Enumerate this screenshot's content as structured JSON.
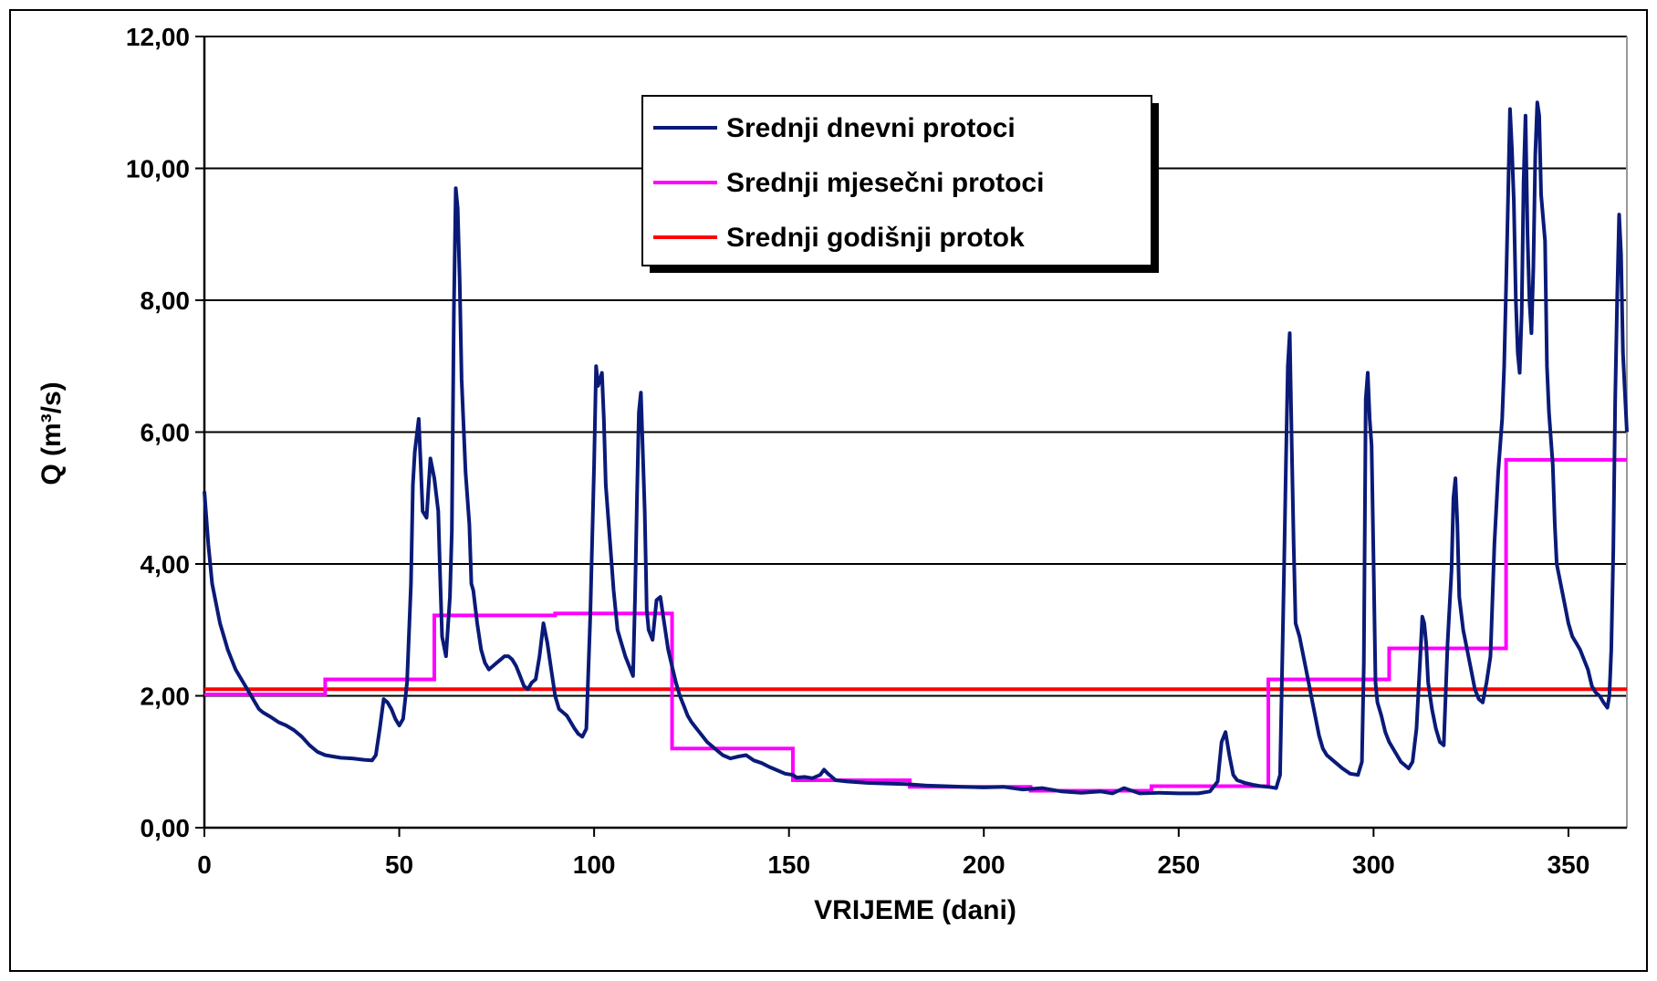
{
  "chart_data": {
    "type": "line",
    "title": "",
    "xlabel": "VRIJEME (dani)",
    "ylabel": "Q (m³/s)",
    "xlim": [
      0,
      365
    ],
    "ylim": [
      0,
      12
    ],
    "x_ticks": [
      0,
      50,
      100,
      150,
      200,
      250,
      300,
      350
    ],
    "x_tick_labels": [
      "0",
      "50",
      "100",
      "150",
      "200",
      "250",
      "300",
      "350"
    ],
    "y_ticks": [
      0,
      2,
      4,
      6,
      8,
      10,
      12
    ],
    "y_tick_labels": [
      "0,00",
      "2,00",
      "4,00",
      "6,00",
      "8,00",
      "10,00",
      "12,00"
    ],
    "grid": "horizontal",
    "legend_position": "top-center",
    "series": [
      {
        "name": "Srednji dnevni protoci",
        "color": "#0a1a78",
        "style": "line",
        "points": [
          [
            0,
            5.1
          ],
          [
            1,
            4.3
          ],
          [
            2,
            3.7
          ],
          [
            3,
            3.4
          ],
          [
            4,
            3.1
          ],
          [
            5,
            2.9
          ],
          [
            6,
            2.7
          ],
          [
            7,
            2.55
          ],
          [
            8,
            2.4
          ],
          [
            9,
            2.3
          ],
          [
            10,
            2.2
          ],
          [
            11,
            2.1
          ],
          [
            12,
            2.0
          ],
          [
            13,
            1.9
          ],
          [
            14,
            1.8
          ],
          [
            15,
            1.75
          ],
          [
            17,
            1.68
          ],
          [
            19,
            1.6
          ],
          [
            21,
            1.55
          ],
          [
            23,
            1.48
          ],
          [
            25,
            1.38
          ],
          [
            27,
            1.25
          ],
          [
            29,
            1.15
          ],
          [
            31,
            1.1
          ],
          [
            33,
            1.08
          ],
          [
            35,
            1.06
          ],
          [
            38,
            1.05
          ],
          [
            41,
            1.03
          ],
          [
            43,
            1.02
          ],
          [
            44,
            1.1
          ],
          [
            45,
            1.5
          ],
          [
            46,
            1.95
          ],
          [
            47,
            1.9
          ],
          [
            48,
            1.8
          ],
          [
            49,
            1.65
          ],
          [
            50,
            1.55
          ],
          [
            51,
            1.65
          ],
          [
            52,
            2.2
          ],
          [
            53,
            3.7
          ],
          [
            53.5,
            5.2
          ],
          [
            54,
            5.7
          ],
          [
            55,
            6.2
          ],
          [
            55.5,
            5.5
          ],
          [
            56,
            4.8
          ],
          [
            57,
            4.7
          ],
          [
            58,
            5.6
          ],
          [
            59,
            5.3
          ],
          [
            60,
            4.8
          ],
          [
            60.5,
            3.8
          ],
          [
            61,
            2.9
          ],
          [
            62,
            2.6
          ],
          [
            63,
            3.5
          ],
          [
            63.5,
            4.5
          ],
          [
            64,
            7.8
          ],
          [
            64.5,
            9.7
          ],
          [
            65,
            9.4
          ],
          [
            65.5,
            8.3
          ],
          [
            66,
            6.8
          ],
          [
            67,
            5.4
          ],
          [
            68,
            4.6
          ],
          [
            68.5,
            3.7
          ],
          [
            69,
            3.6
          ],
          [
            70,
            3.1
          ],
          [
            71,
            2.7
          ],
          [
            72,
            2.5
          ],
          [
            73,
            2.4
          ],
          [
            74,
            2.45
          ],
          [
            75,
            2.5
          ],
          [
            76,
            2.55
          ],
          [
            77,
            2.6
          ],
          [
            78,
            2.6
          ],
          [
            79,
            2.55
          ],
          [
            80,
            2.45
          ],
          [
            81,
            2.3
          ],
          [
            82,
            2.15
          ],
          [
            83,
            2.1
          ],
          [
            84,
            2.2
          ],
          [
            85,
            2.25
          ],
          [
            86,
            2.6
          ],
          [
            87,
            3.1
          ],
          [
            88,
            2.8
          ],
          [
            89,
            2.4
          ],
          [
            90,
            2.0
          ],
          [
            91,
            1.8
          ],
          [
            92,
            1.75
          ],
          [
            93,
            1.7
          ],
          [
            94,
            1.6
          ],
          [
            95,
            1.5
          ],
          [
            96,
            1.42
          ],
          [
            97,
            1.38
          ],
          [
            98,
            1.5
          ],
          [
            99,
            3.2
          ],
          [
            100,
            5.5
          ],
          [
            100.5,
            7.0
          ],
          [
            101,
            6.7
          ],
          [
            102,
            6.9
          ],
          [
            102.5,
            6.2
          ],
          [
            103,
            5.2
          ],
          [
            104,
            4.4
          ],
          [
            105,
            3.6
          ],
          [
            106,
            3.0
          ],
          [
            107,
            2.8
          ],
          [
            108,
            2.6
          ],
          [
            109,
            2.45
          ],
          [
            110,
            2.3
          ],
          [
            110.5,
            3.5
          ],
          [
            111,
            5.0
          ],
          [
            111.5,
            6.3
          ],
          [
            112,
            6.6
          ],
          [
            112.5,
            5.7
          ],
          [
            113,
            4.8
          ],
          [
            113.5,
            3.3
          ],
          [
            114,
            3.0
          ],
          [
            115,
            2.85
          ],
          [
            116,
            3.45
          ],
          [
            117,
            3.5
          ],
          [
            118,
            3.1
          ],
          [
            119,
            2.7
          ],
          [
            120,
            2.45
          ],
          [
            121,
            2.2
          ],
          [
            122,
            2.0
          ],
          [
            123,
            1.85
          ],
          [
            124,
            1.7
          ],
          [
            125,
            1.6
          ],
          [
            127,
            1.45
          ],
          [
            129,
            1.3
          ],
          [
            131,
            1.2
          ],
          [
            133,
            1.1
          ],
          [
            135,
            1.05
          ],
          [
            137,
            1.08
          ],
          [
            139,
            1.1
          ],
          [
            141,
            1.02
          ],
          [
            143,
            0.98
          ],
          [
            145,
            0.92
          ],
          [
            147,
            0.87
          ],
          [
            149,
            0.82
          ],
          [
            151,
            0.8
          ],
          [
            152,
            0.76
          ],
          [
            154,
            0.77
          ],
          [
            156,
            0.75
          ],
          [
            158,
            0.8
          ],
          [
            159,
            0.88
          ],
          [
            160,
            0.82
          ],
          [
            162,
            0.72
          ],
          [
            165,
            0.7
          ],
          [
            170,
            0.68
          ],
          [
            175,
            0.67
          ],
          [
            180,
            0.66
          ],
          [
            185,
            0.64
          ],
          [
            190,
            0.63
          ],
          [
            195,
            0.62
          ],
          [
            200,
            0.61
          ],
          [
            205,
            0.62
          ],
          [
            210,
            0.58
          ],
          [
            215,
            0.6
          ],
          [
            220,
            0.55
          ],
          [
            225,
            0.53
          ],
          [
            230,
            0.55
          ],
          [
            233,
            0.52
          ],
          [
            236,
            0.6
          ],
          [
            240,
            0.52
          ],
          [
            245,
            0.53
          ],
          [
            250,
            0.52
          ],
          [
            255,
            0.52
          ],
          [
            258,
            0.55
          ],
          [
            260,
            0.7
          ],
          [
            261,
            1.3
          ],
          [
            262,
            1.45
          ],
          [
            263,
            1.1
          ],
          [
            264,
            0.8
          ],
          [
            265,
            0.72
          ],
          [
            267,
            0.68
          ],
          [
            269,
            0.65
          ],
          [
            271,
            0.63
          ],
          [
            273,
            0.62
          ],
          [
            275,
            0.6
          ],
          [
            276,
            0.8
          ],
          [
            277,
            3.8
          ],
          [
            277.5,
            5.5
          ],
          [
            278,
            7.0
          ],
          [
            278.5,
            7.5
          ],
          [
            279,
            5.8
          ],
          [
            279.5,
            4.3
          ],
          [
            280,
            3.1
          ],
          [
            281,
            2.9
          ],
          [
            282,
            2.6
          ],
          [
            283,
            2.3
          ],
          [
            284,
            2.0
          ],
          [
            285,
            1.7
          ],
          [
            286,
            1.4
          ],
          [
            287,
            1.2
          ],
          [
            288,
            1.1
          ],
          [
            290,
            1.0
          ],
          [
            292,
            0.9
          ],
          [
            294,
            0.82
          ],
          [
            296,
            0.8
          ],
          [
            297,
            1.0
          ],
          [
            297.5,
            2.5
          ],
          [
            298,
            6.5
          ],
          [
            298.5,
            6.9
          ],
          [
            299,
            6.2
          ],
          [
            299.5,
            5.8
          ],
          [
            300,
            4.0
          ],
          [
            300.5,
            2.2
          ],
          [
            301,
            1.9
          ],
          [
            302,
            1.7
          ],
          [
            303,
            1.45
          ],
          [
            304,
            1.3
          ],
          [
            305,
            1.2
          ],
          [
            306,
            1.1
          ],
          [
            307,
            1.0
          ],
          [
            308,
            0.95
          ],
          [
            309,
            0.9
          ],
          [
            310,
            1.0
          ],
          [
            311,
            1.5
          ],
          [
            312,
            2.6
          ],
          [
            312.5,
            3.2
          ],
          [
            313,
            3.1
          ],
          [
            313.5,
            2.8
          ],
          [
            314,
            2.2
          ],
          [
            315,
            1.8
          ],
          [
            316,
            1.5
          ],
          [
            317,
            1.3
          ],
          [
            318,
            1.25
          ],
          [
            319,
            2.8
          ],
          [
            320,
            3.9
          ],
          [
            320.5,
            5.0
          ],
          [
            321,
            5.3
          ],
          [
            321.5,
            4.6
          ],
          [
            322,
            3.5
          ],
          [
            323,
            3.0
          ],
          [
            324,
            2.7
          ],
          [
            325,
            2.4
          ],
          [
            326,
            2.1
          ],
          [
            327,
            1.95
          ],
          [
            328,
            1.9
          ],
          [
            329,
            2.2
          ],
          [
            330,
            2.6
          ],
          [
            331,
            4.3
          ],
          [
            332,
            5.4
          ],
          [
            333,
            6.2
          ],
          [
            333.5,
            7.0
          ],
          [
            334,
            8.2
          ],
          [
            334.5,
            9.5
          ],
          [
            335,
            10.9
          ],
          [
            335.5,
            10.3
          ],
          [
            336,
            9.5
          ],
          [
            336.5,
            8.0
          ],
          [
            337,
            7.2
          ],
          [
            337.5,
            6.9
          ],
          [
            338,
            7.8
          ],
          [
            338.5,
            9.8
          ],
          [
            339,
            10.8
          ],
          [
            339.5,
            9.0
          ],
          [
            340,
            8.0
          ],
          [
            340.5,
            7.5
          ],
          [
            341,
            8.5
          ],
          [
            341.5,
            10.2
          ],
          [
            342,
            11.0
          ],
          [
            342.5,
            10.8
          ],
          [
            343,
            9.6
          ],
          [
            344,
            8.9
          ],
          [
            344.5,
            7.0
          ],
          [
            345,
            6.3
          ],
          [
            346,
            5.5
          ],
          [
            346.5,
            4.6
          ],
          [
            347,
            4.0
          ],
          [
            348,
            3.7
          ],
          [
            349,
            3.4
          ],
          [
            350,
            3.1
          ],
          [
            351,
            2.9
          ],
          [
            352,
            2.8
          ],
          [
            353,
            2.7
          ],
          [
            354,
            2.55
          ],
          [
            355,
            2.4
          ],
          [
            356,
            2.15
          ],
          [
            357,
            2.05
          ],
          [
            358,
            2.0
          ],
          [
            359,
            1.9
          ],
          [
            360,
            1.82
          ],
          [
            360.5,
            2.0
          ],
          [
            361,
            2.7
          ],
          [
            361.5,
            4.2
          ],
          [
            362,
            6.5
          ],
          [
            362.5,
            8.0
          ],
          [
            363,
            9.3
          ],
          [
            363.5,
            8.7
          ],
          [
            364,
            7.2
          ],
          [
            365,
            6.0
          ]
        ]
      },
      {
        "name": "Srednji mjesečni protoci",
        "color": "#ff00ff",
        "style": "step",
        "segments": [
          [
            0,
            31,
            2.02
          ],
          [
            31,
            59,
            2.25
          ],
          [
            59,
            90,
            3.22
          ],
          [
            90,
            120,
            3.25
          ],
          [
            120,
            151,
            1.2
          ],
          [
            151,
            181,
            0.72
          ],
          [
            181,
            212,
            0.62
          ],
          [
            212,
            243,
            0.56
          ],
          [
            243,
            273,
            0.63
          ],
          [
            273,
            304,
            2.25
          ],
          [
            304,
            334,
            2.72
          ],
          [
            334,
            365,
            5.58
          ]
        ]
      },
      {
        "name": "Srednji godišnji protok",
        "color": "#ff0000",
        "style": "constant",
        "value": 2.1
      }
    ]
  }
}
